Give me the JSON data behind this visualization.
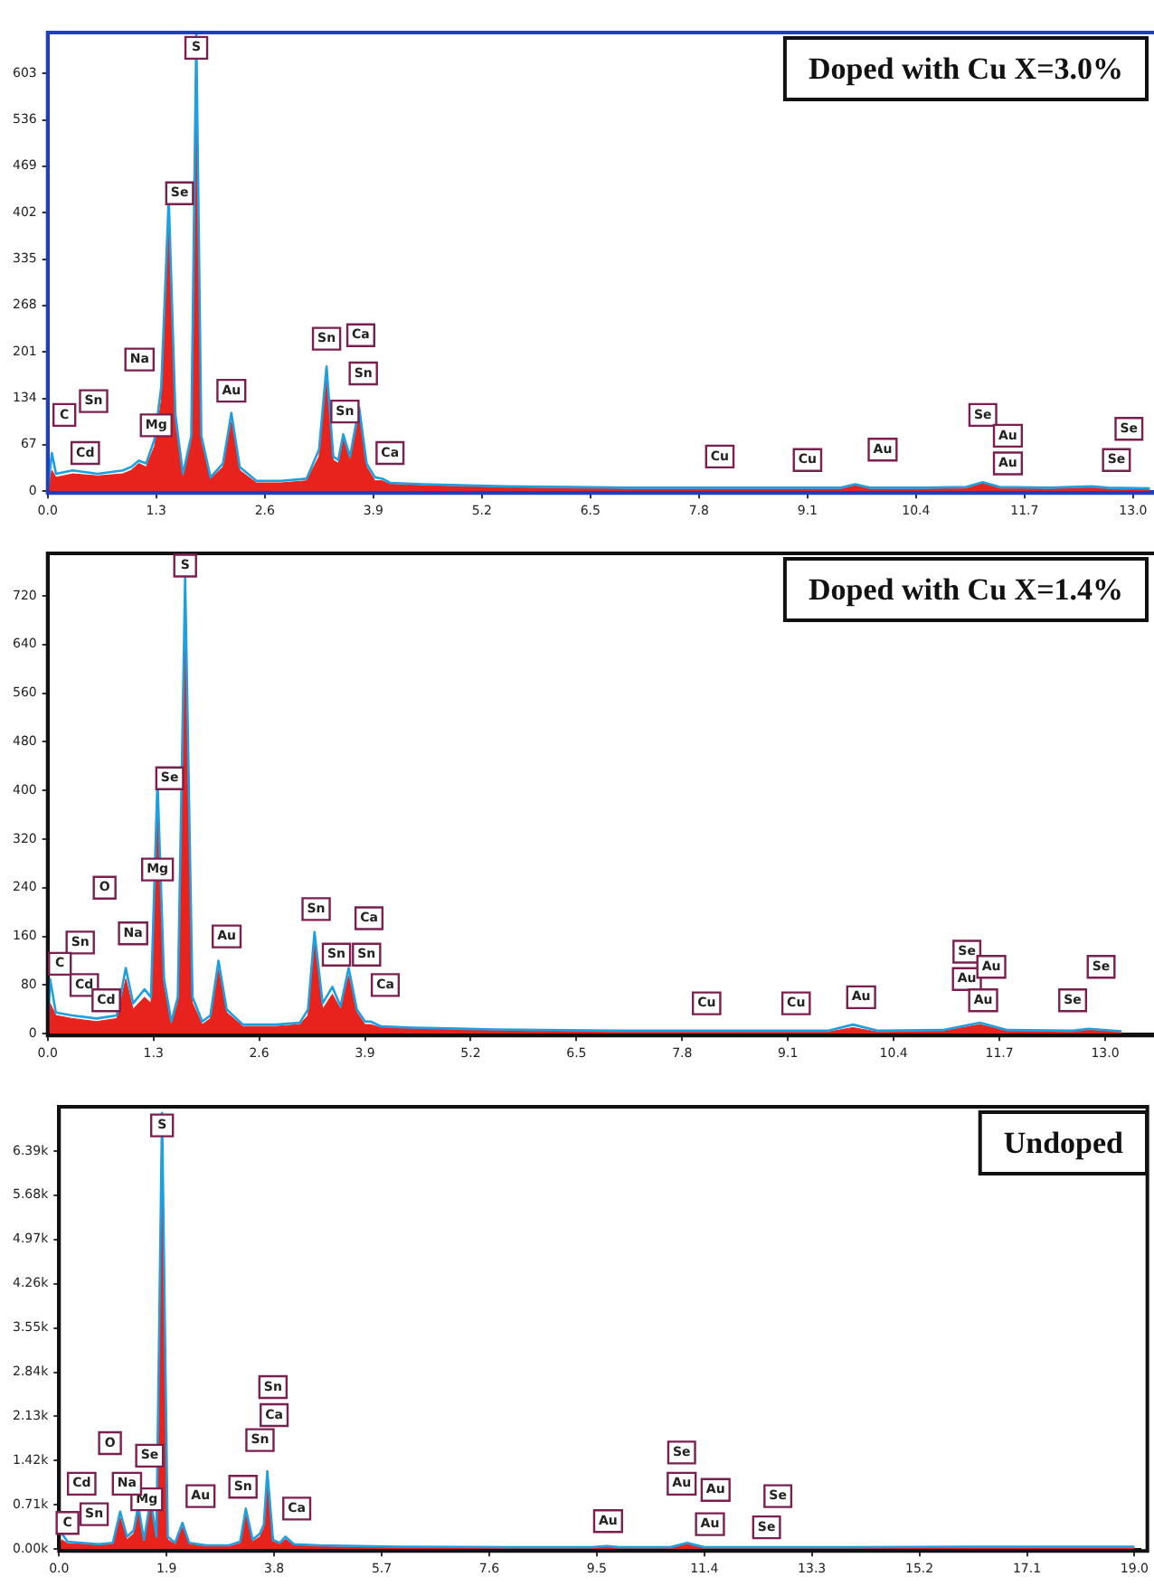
{
  "chart_data": [
    {
      "type": "line",
      "title": "Doped with Cu X=3.0%",
      "x": [
        0,
        0.05,
        0.1,
        0.3,
        0.6,
        0.9,
        1.0,
        1.09,
        1.18,
        1.28,
        1.36,
        1.45,
        1.53,
        1.62,
        1.72,
        1.78,
        1.84,
        1.95,
        2.1,
        2.2,
        2.3,
        2.5,
        2.8,
        3.1,
        3.25,
        3.34,
        3.42,
        3.48,
        3.54,
        3.62,
        3.73,
        3.82,
        3.92,
        4.01,
        4.1,
        4.5,
        5.5,
        7,
        8.5,
        9.5,
        9.67,
        9.85,
        10.5,
        11.0,
        11.2,
        11.4,
        12.0,
        12.5,
        12.7,
        13.2
      ],
      "series": [
        {
          "type": "area",
          "color": "#e8221c",
          "values": [
            0,
            30,
            20,
            25,
            22,
            25,
            30,
            40,
            35,
            65,
            130,
            390,
            95,
            20,
            70,
            640,
            70,
            18,
            35,
            100,
            30,
            12,
            12,
            15,
            50,
            165,
            45,
            40,
            75,
            45,
            110,
            35,
            15,
            15,
            10,
            8,
            5,
            3,
            3,
            3,
            8,
            3,
            3,
            4,
            12,
            4,
            3,
            5,
            3,
            2
          ]
        },
        {
          "type": "line",
          "color": "#1e9fe0",
          "values": [
            0,
            55,
            25,
            30,
            25,
            30,
            35,
            44,
            40,
            75,
            150,
            423,
            110,
            25,
            80,
            660,
            80,
            20,
            40,
            113,
            35,
            15,
            15,
            18,
            60,
            180,
            50,
            45,
            82,
            50,
            121,
            40,
            20,
            18,
            12,
            10,
            7,
            5,
            5,
            5,
            10,
            5,
            5,
            6,
            13,
            6,
            5,
            7,
            5,
            4
          ]
        }
      ],
      "xlim": [
        0,
        13.25
      ],
      "xticks": [
        {
          "value": 0,
          "label": "0.0"
        },
        1.3,
        2.6,
        3.9,
        5.2,
        6.5,
        7.8,
        9.1,
        10.4,
        11.7,
        {
          "value": 13,
          "label": "13.0"
        }
      ],
      "ylim": [
        0,
        662
      ],
      "yticks": [
        0,
        67,
        134,
        201,
        268,
        335,
        402,
        469,
        536,
        603
      ],
      "annotations": [
        {
          "text": "S",
          "x": 1.78,
          "y": 640
        },
        {
          "text": "Se",
          "x": 1.58,
          "y": 430
        },
        {
          "text": "Na",
          "x": 1.1,
          "y": 190
        },
        {
          "text": "Mg",
          "x": 1.3,
          "y": 95
        },
        {
          "text": "Au",
          "x": 2.2,
          "y": 145
        },
        {
          "text": "Sn",
          "x": 3.34,
          "y": 220
        },
        {
          "text": "Ca",
          "x": 3.75,
          "y": 225
        },
        {
          "text": "Sn",
          "x": 3.78,
          "y": 170
        },
        {
          "text": "Sn",
          "x": 3.56,
          "y": 115
        },
        {
          "text": "Ca",
          "x": 4.1,
          "y": 55
        },
        {
          "text": "Cd",
          "x": 0.45,
          "y": 55
        },
        {
          "text": "C",
          "x": 0.2,
          "y": 110
        },
        {
          "text": "Sn",
          "x": 0.55,
          "y": 130
        },
        {
          "text": "Cu",
          "x": 8.05,
          "y": 50
        },
        {
          "text": "Cu",
          "x": 9.1,
          "y": 45
        },
        {
          "text": "Au",
          "x": 10.0,
          "y": 60
        },
        {
          "text": "Se",
          "x": 11.2,
          "y": 110
        },
        {
          "text": "Au",
          "x": 11.5,
          "y": 80
        },
        {
          "text": "Au",
          "x": 11.5,
          "y": 40
        },
        {
          "text": "Se",
          "x": 12.8,
          "y": 45
        },
        {
          "text": "Se",
          "x": 12.95,
          "y": 90
        }
      ]
    },
    {
      "type": "line",
      "title": "Doped with Cu X=1.4%",
      "x": [
        0,
        0.03,
        0.1,
        0.3,
        0.6,
        0.85,
        0.96,
        1.05,
        1.19,
        1.27,
        1.35,
        1.43,
        1.52,
        1.6,
        1.69,
        1.78,
        1.9,
        2.0,
        2.1,
        2.2,
        2.4,
        2.8,
        3.1,
        3.2,
        3.28,
        3.38,
        3.5,
        3.6,
        3.7,
        3.8,
        3.9,
        3.97,
        4.1,
        4.5,
        5.5,
        7,
        8.5,
        9.6,
        9.9,
        10.2,
        11,
        11.46,
        11.8,
        12.6,
        12.8,
        13.2
      ],
      "series": [
        {
          "type": "area",
          "color": "#e8221c",
          "values": [
            0,
            50,
            30,
            25,
            20,
            25,
            90,
            40,
            60,
            50,
            380,
            75,
            15,
            50,
            720,
            50,
            15,
            25,
            105,
            35,
            12,
            12,
            15,
            30,
            150,
            40,
            65,
            40,
            95,
            35,
            15,
            15,
            10,
            8,
            5,
            3,
            3,
            3,
            10,
            3,
            4,
            15,
            4,
            3,
            6,
            2
          ]
        },
        {
          "type": "line",
          "color": "#1e9fe0",
          "values": [
            0,
            90,
            35,
            30,
            25,
            30,
            108,
            50,
            73,
            60,
            417,
            90,
            20,
            60,
            750,
            60,
            20,
            30,
            120,
            40,
            15,
            15,
            18,
            40,
            167,
            50,
            77,
            45,
            108,
            40,
            20,
            20,
            12,
            10,
            7,
            5,
            5,
            5,
            15,
            5,
            6,
            18,
            6,
            5,
            8,
            4
          ]
        }
      ],
      "xlim": [
        0,
        13.6
      ],
      "xticks": [
        {
          "value": 0,
          "label": "0.0"
        },
        1.3,
        2.6,
        3.9,
        5.2,
        6.5,
        7.8,
        9.1,
        10.4,
        11.7,
        {
          "value": 13,
          "label": "13.0"
        }
      ],
      "ylim": [
        0,
        790
      ],
      "yticks": [
        0,
        80,
        160,
        240,
        320,
        400,
        480,
        560,
        640,
        720
      ],
      "annotations": [
        {
          "text": "S",
          "x": 1.69,
          "y": 770
        },
        {
          "text": "Se",
          "x": 1.5,
          "y": 420
        },
        {
          "text": "Mg",
          "x": 1.35,
          "y": 270
        },
        {
          "text": "Na",
          "x": 1.05,
          "y": 165
        },
        {
          "text": "O",
          "x": 0.7,
          "y": 240
        },
        {
          "text": "Sn",
          "x": 0.4,
          "y": 150
        },
        {
          "text": "C",
          "x": 0.15,
          "y": 115
        },
        {
          "text": "Cd",
          "x": 0.45,
          "y": 80
        },
        {
          "text": "Cd",
          "x": 0.72,
          "y": 55
        },
        {
          "text": "Au",
          "x": 2.2,
          "y": 160
        },
        {
          "text": "Sn",
          "x": 3.3,
          "y": 205
        },
        {
          "text": "Ca",
          "x": 3.95,
          "y": 190
        },
        {
          "text": "Sn",
          "x": 3.55,
          "y": 130
        },
        {
          "text": "Sn",
          "x": 3.92,
          "y": 130
        },
        {
          "text": "Ca",
          "x": 4.15,
          "y": 80
        },
        {
          "text": "Cu",
          "x": 8.1,
          "y": 50
        },
        {
          "text": "Cu",
          "x": 9.2,
          "y": 50
        },
        {
          "text": "Au",
          "x": 10.0,
          "y": 60
        },
        {
          "text": "Se",
          "x": 11.3,
          "y": 135
        },
        {
          "text": "Au",
          "x": 11.3,
          "y": 90
        },
        {
          "text": "Au",
          "x": 11.6,
          "y": 110
        },
        {
          "text": "Au",
          "x": 11.5,
          "y": 55
        },
        {
          "text": "Se",
          "x": 12.6,
          "y": 55
        },
        {
          "text": "Se",
          "x": 12.95,
          "y": 110
        }
      ]
    },
    {
      "type": "line",
      "title": "Undoped",
      "x": [
        0,
        0.05,
        0.15,
        0.4,
        0.7,
        0.95,
        1.08,
        1.2,
        1.32,
        1.4,
        1.5,
        1.62,
        1.72,
        1.82,
        1.92,
        2.05,
        2.18,
        2.3,
        2.6,
        3.0,
        3.2,
        3.3,
        3.42,
        3.55,
        3.62,
        3.68,
        3.78,
        3.9,
        4.0,
        4.15,
        4.6,
        6,
        8,
        9.4,
        9.68,
        9.9,
        10.8,
        11.1,
        11.4,
        12.5,
        14,
        16,
        19
      ],
      "series": [
        {
          "type": "area",
          "color": "#e8221c",
          "values": [
            0,
            150,
            90,
            80,
            60,
            80,
            500,
            150,
            250,
            600,
            120,
            700,
            150,
            6800,
            150,
            80,
            350,
            80,
            40,
            40,
            90,
            550,
            120,
            200,
            330,
            1100,
            120,
            80,
            160,
            60,
            40,
            20,
            20,
            20,
            40,
            20,
            20,
            80,
            20,
            20,
            20,
            20,
            20
          ]
        },
        {
          "type": "line",
          "color": "#1e9fe0",
          "values": [
            null,
            250,
            120,
            100,
            80,
            100,
            600,
            200,
            300,
            700,
            150,
            800,
            200,
            7000,
            200,
            100,
            420,
            100,
            60,
            60,
            120,
            650,
            150,
            250,
            400,
            1250,
            150,
            100,
            200,
            80,
            60,
            40,
            30,
            30,
            50,
            30,
            30,
            100,
            30,
            30,
            30,
            40,
            40
          ]
        }
      ],
      "xlim": [
        0,
        19.1
      ],
      "xticks": [
        {
          "value": 0,
          "label": "0.0"
        },
        1.9,
        3.8,
        5.7,
        7.6,
        9.5,
        11.4,
        13.3,
        15.2,
        17.1,
        {
          "value": 19,
          "label": "19.0"
        }
      ],
      "ylim": [
        0,
        7100
      ],
      "yticks": [
        {
          "value": 0,
          "label": "0.00k"
        },
        {
          "value": 710,
          "label": "0.71k"
        },
        {
          "value": 1420,
          "label": "1.42k"
        },
        {
          "value": 2130,
          "label": "2.13k"
        },
        {
          "value": 2840,
          "label": "2.84k"
        },
        {
          "value": 3550,
          "label": "3.55k"
        },
        {
          "value": 4260,
          "label": "4.26k"
        },
        {
          "value": 4970,
          "label": "4.97k"
        },
        {
          "value": 5680,
          "label": "5.68k"
        },
        {
          "value": 6390,
          "label": "6.39k"
        }
      ],
      "annotations": [
        {
          "text": "S",
          "x": 1.82,
          "y": 6800
        },
        {
          "text": "Se",
          "x": 1.6,
          "y": 1500
        },
        {
          "text": "Mg",
          "x": 1.55,
          "y": 800
        },
        {
          "text": "Na",
          "x": 1.2,
          "y": 1050
        },
        {
          "text": "O",
          "x": 0.9,
          "y": 1700
        },
        {
          "text": "Cd",
          "x": 0.4,
          "y": 1050
        },
        {
          "text": "Sn",
          "x": 0.62,
          "y": 560
        },
        {
          "text": "C",
          "x": 0.15,
          "y": 420
        },
        {
          "text": "Au",
          "x": 2.5,
          "y": 850
        },
        {
          "text": "Sn",
          "x": 3.25,
          "y": 1000
        },
        {
          "text": "Sn",
          "x": 3.55,
          "y": 1750
        },
        {
          "text": "Ca",
          "x": 3.8,
          "y": 2150
        },
        {
          "text": "Sn",
          "x": 3.78,
          "y": 2600
        },
        {
          "text": "Ca",
          "x": 4.2,
          "y": 650
        },
        {
          "text": "Au",
          "x": 9.7,
          "y": 450
        },
        {
          "text": "Se",
          "x": 11.0,
          "y": 1550
        },
        {
          "text": "Au",
          "x": 11.0,
          "y": 1050
        },
        {
          "text": "Au",
          "x": 11.6,
          "y": 950
        },
        {
          "text": "Au",
          "x": 11.5,
          "y": 400
        },
        {
          "text": "Se",
          "x": 12.7,
          "y": 850
        },
        {
          "text": "Se",
          "x": 12.5,
          "y": 350
        }
      ]
    }
  ]
}
